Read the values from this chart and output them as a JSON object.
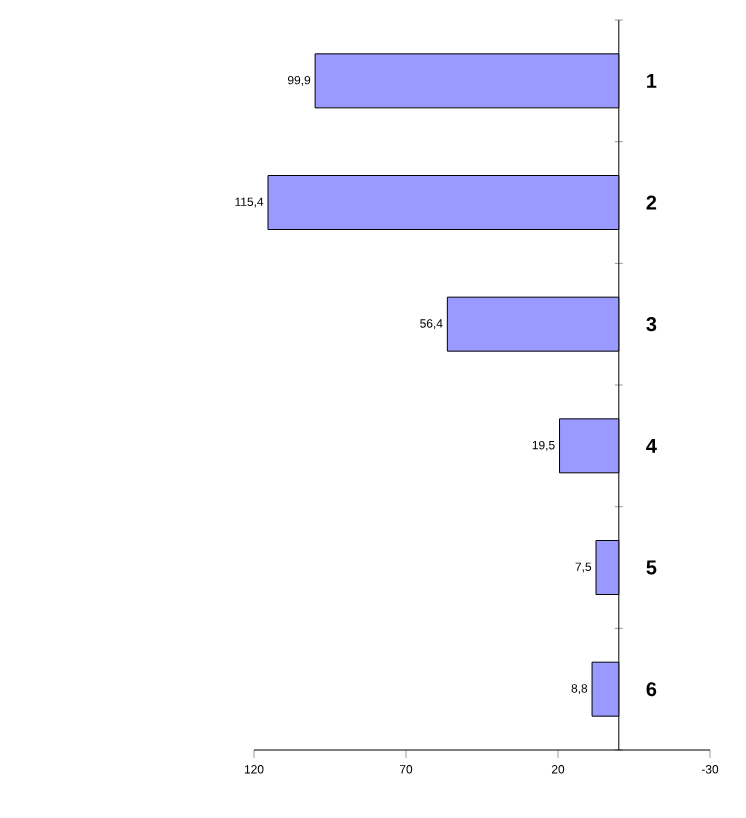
{
  "chart_data": {
    "type": "bar",
    "orientation": "horizontal",
    "categories": [
      "1",
      "2",
      "3",
      "4",
      "5",
      "6"
    ],
    "values": [
      99.9,
      115.4,
      56.4,
      19.5,
      7.5,
      8.8
    ],
    "value_labels": [
      "99,9",
      "115,4",
      "56,4",
      "19,5",
      "7,5",
      "8,8"
    ],
    "color": "#9999ff",
    "xlim": [
      120,
      -30
    ],
    "xticks": [
      120,
      70,
      20,
      -30
    ]
  }
}
